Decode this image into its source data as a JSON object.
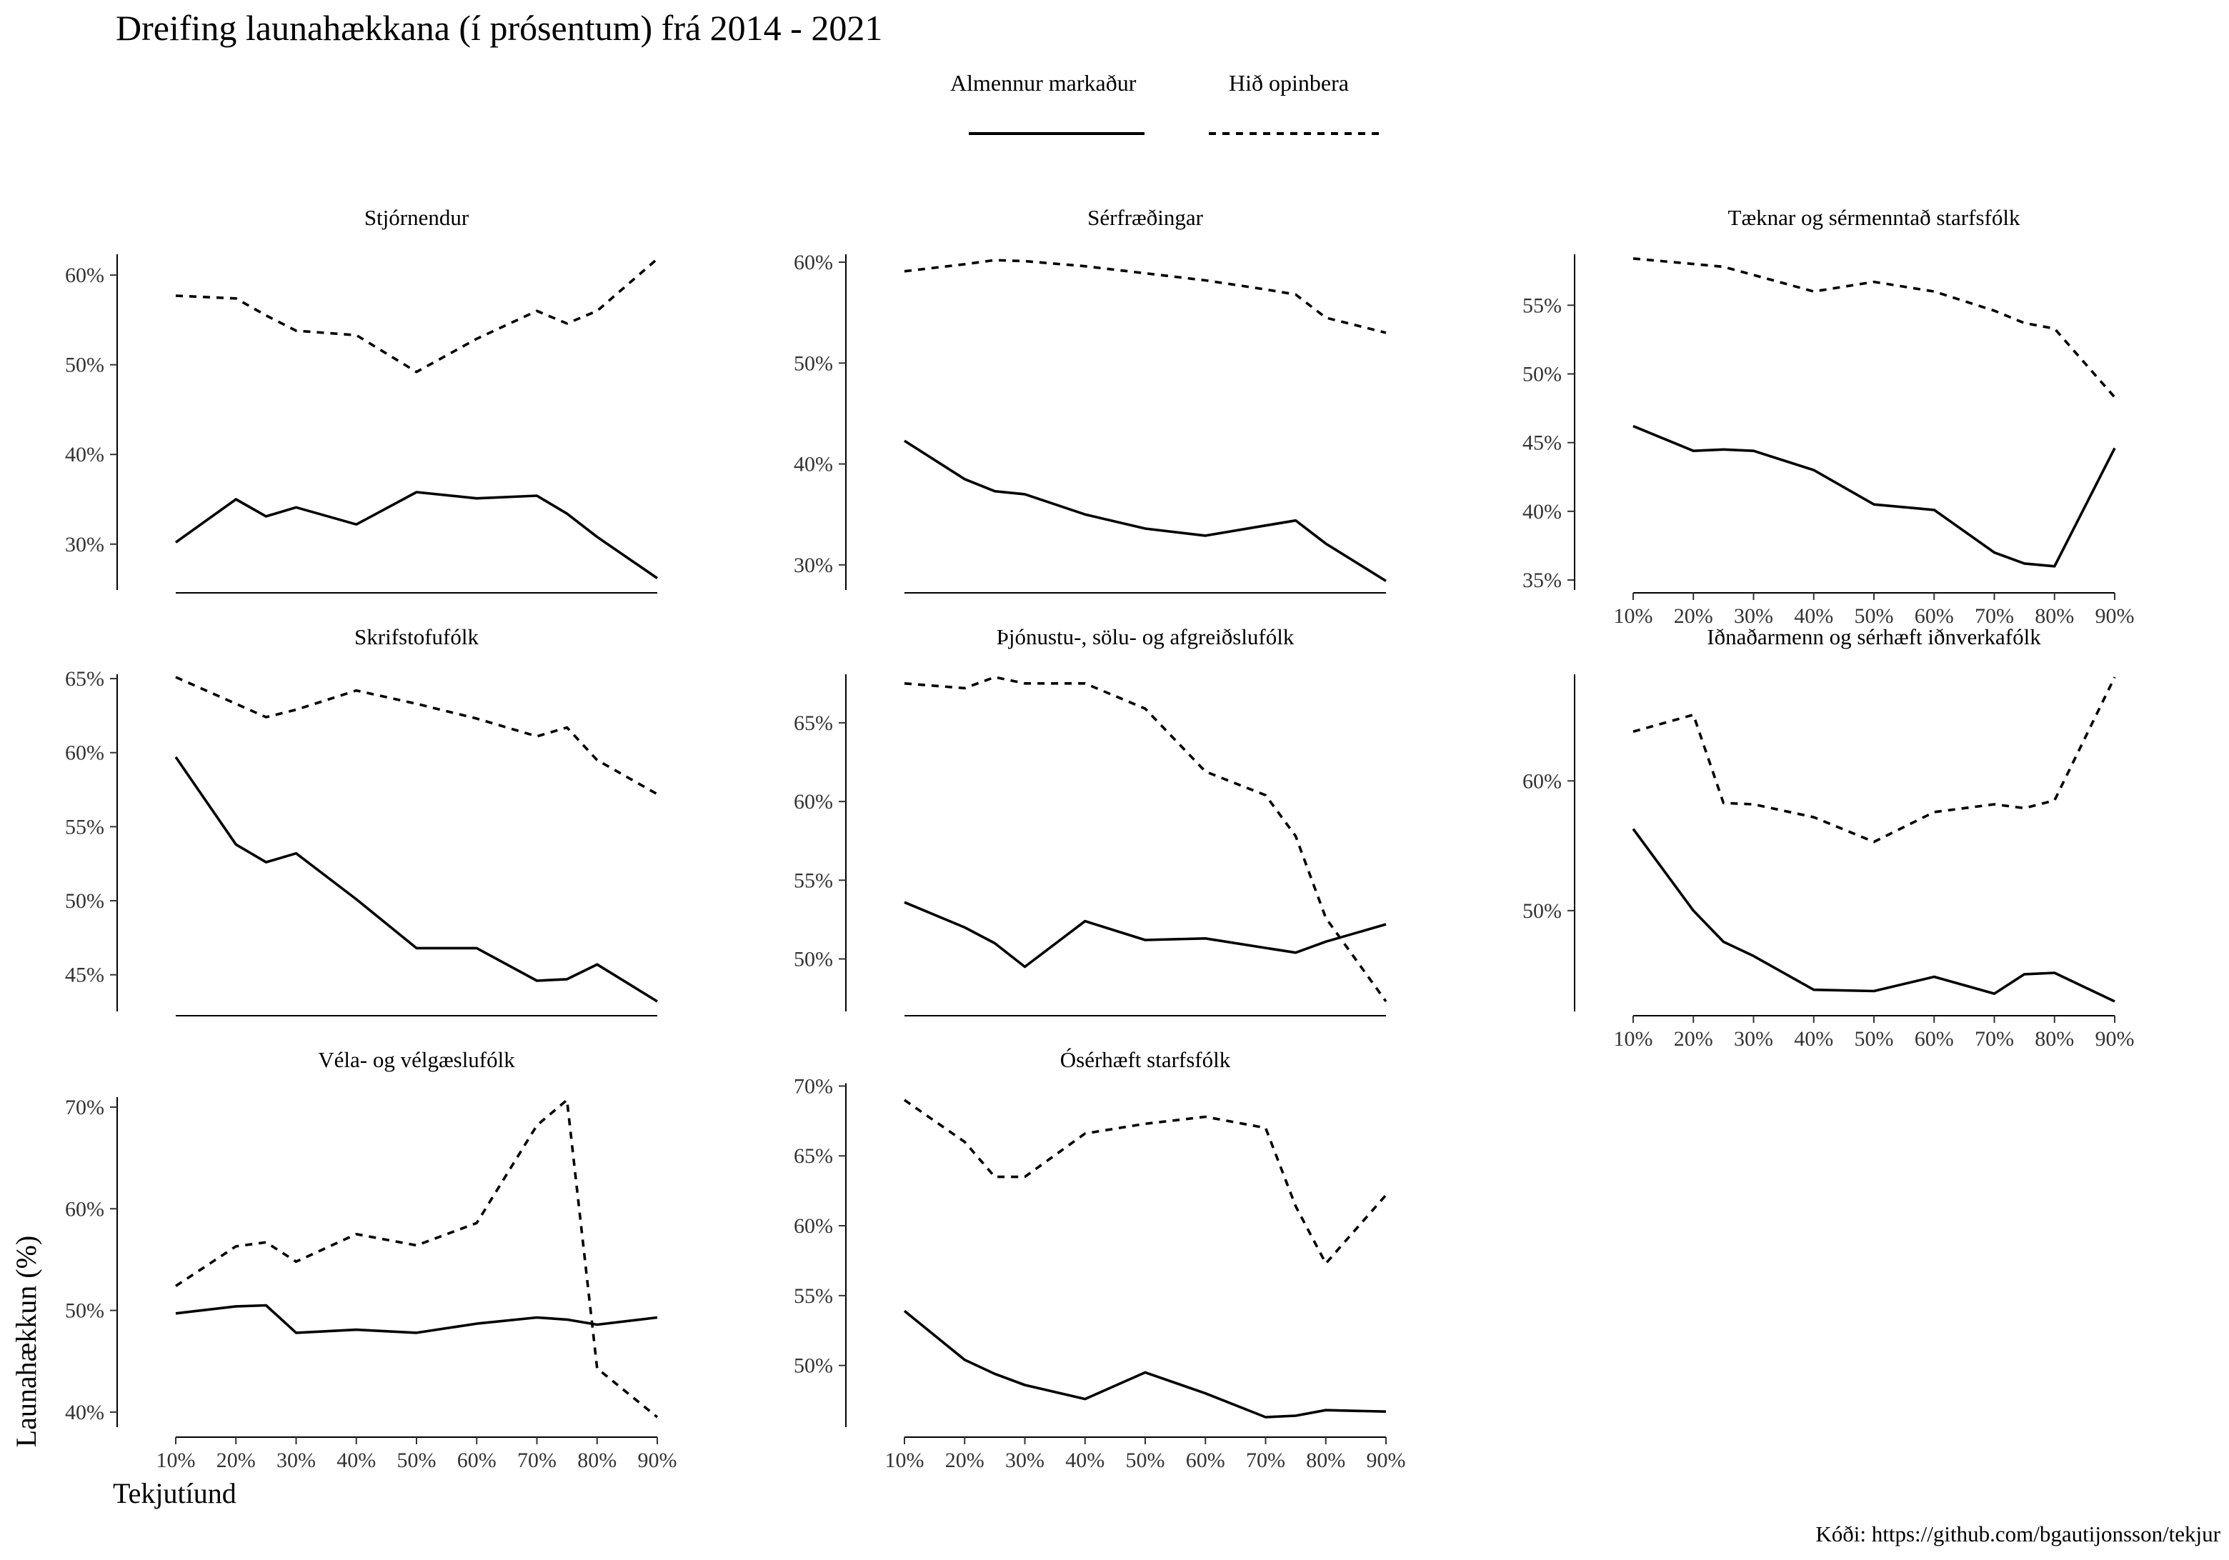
{
  "title": "Dreifing launahækkana (í prósentum) frá 2014 - 2021",
  "caption": "Kóði: https://github.com/bgautijonsson/tekjur",
  "legend": {
    "items": [
      {
        "label": "Almennur markaður",
        "style": "solid"
      },
      {
        "label": "Hið opinbera",
        "style": "dashed"
      }
    ]
  },
  "axes": {
    "xlabel": "Tekjutíund",
    "ylabel": "Launahækkun (%)",
    "x_ticks": [
      10,
      20,
      30,
      40,
      50,
      60,
      70,
      80,
      90
    ],
    "x_tick_labels": [
      "10%",
      "20%",
      "30%",
      "40%",
      "50%",
      "60%",
      "70%",
      "80%",
      "90%"
    ],
    "xlim": [
      10,
      90
    ]
  },
  "colors": {
    "line": "#000000",
    "text": "#000000",
    "tick_text": "#333333"
  },
  "chart_data": {
    "type": "line",
    "facets": [
      {
        "name": "Stjórnendur",
        "ylim": [
          26,
          62
        ],
        "yticks": [
          30,
          40,
          50,
          60
        ],
        "x_axis_labels": false,
        "x": [
          10,
          20,
          25,
          30,
          40,
          50,
          60,
          70,
          75,
          80,
          90
        ],
        "series": [
          {
            "name": "Almennur markaður",
            "values": [
              30.2,
              35.0,
              33.1,
              34.1,
              32.2,
              35.8,
              35.1,
              35.4,
              33.4,
              30.8,
              26.2
            ]
          },
          {
            "name": "Hið opinbera",
            "values": [
              57.7,
              57.4,
              55.5,
              53.8,
              53.3,
              49.2,
              52.9,
              56.0,
              54.6,
              56.0,
              61.8
            ]
          }
        ]
      },
      {
        "name": "Sérfræðingar",
        "ylim": [
          28.5,
          60.5
        ],
        "yticks": [
          30,
          40,
          50,
          60
        ],
        "x_axis_labels": false,
        "x": [
          10,
          20,
          25,
          30,
          40,
          50,
          60,
          70,
          75,
          80,
          90
        ],
        "series": [
          {
            "name": "Almennur markaður",
            "values": [
              42.3,
              38.5,
              37.3,
              37.0,
              35.0,
              33.6,
              32.9,
              33.9,
              34.4,
              32.1,
              28.4
            ]
          },
          {
            "name": "Hið opinbera",
            "values": [
              59.1,
              59.8,
              60.2,
              60.1,
              59.6,
              58.9,
              58.2,
              57.3,
              56.8,
              54.5,
              53.0
            ]
          }
        ]
      },
      {
        "name": "Tæknar og sérmenntað starfsfólk",
        "ylim": [
          35,
          58.5
        ],
        "yticks": [
          35,
          40,
          45,
          50,
          55
        ],
        "x_axis_labels": true,
        "x": [
          10,
          20,
          25,
          30,
          40,
          50,
          60,
          70,
          75,
          80,
          90
        ],
        "series": [
          {
            "name": "Almennur markaður",
            "values": [
              46.2,
              44.4,
              44.5,
              44.4,
              43.0,
              40.5,
              40.1,
              37.0,
              36.2,
              36.0,
              44.6
            ]
          },
          {
            "name": "Hið opinbera",
            "values": [
              58.4,
              58.0,
              57.8,
              57.2,
              56.0,
              56.7,
              56.0,
              54.6,
              53.7,
              53.3,
              48.3
            ]
          }
        ]
      },
      {
        "name": "Skrifstofufólk",
        "ylim": [
          43.2,
          65.1
        ],
        "yticks": [
          45,
          50,
          55,
          60,
          65
        ],
        "x_axis_labels": false,
        "x": [
          10,
          20,
          25,
          30,
          40,
          50,
          60,
          70,
          75,
          80,
          90
        ],
        "series": [
          {
            "name": "Almennur markaður",
            "values": [
              59.7,
              53.8,
              52.6,
              53.2,
              50.1,
              46.8,
              46.8,
              44.6,
              44.7,
              45.7,
              43.2
            ]
          },
          {
            "name": "Hið opinbera",
            "values": [
              65.1,
              63.3,
              62.4,
              62.9,
              64.2,
              63.3,
              62.3,
              61.1,
              61.7,
              59.5,
              57.2
            ]
          }
        ]
      },
      {
        "name": "Þjónustu-, sölu- og afgreiðslufólk",
        "ylim": [
          47.3,
          67.9
        ],
        "yticks": [
          50,
          55,
          60,
          65
        ],
        "x_axis_labels": false,
        "x": [
          10,
          20,
          25,
          30,
          40,
          50,
          60,
          70,
          75,
          80,
          90
        ],
        "series": [
          {
            "name": "Almennur markaður",
            "values": [
              53.6,
              52.0,
              51.0,
              49.5,
              52.4,
              51.2,
              51.3,
              50.7,
              50.4,
              51.1,
              52.2
            ]
          },
          {
            "name": "Hið opinbera",
            "values": [
              67.5,
              67.2,
              67.9,
              67.5,
              67.5,
              65.9,
              61.9,
              60.4,
              57.8,
              52.6,
              47.3
            ]
          }
        ]
      },
      {
        "name": "Iðnaðarmenn og sérhæft iðnverkafólk",
        "ylim": [
          43,
          68
        ],
        "yticks": [
          50,
          60
        ],
        "x_axis_labels": true,
        "x": [
          10,
          20,
          25,
          30,
          40,
          50,
          60,
          70,
          75,
          80,
          90
        ],
        "series": [
          {
            "name": "Almennur markaður",
            "values": [
              56.3,
              50.0,
              47.6,
              46.5,
              43.9,
              43.8,
              44.9,
              43.6,
              45.1,
              45.2,
              43.0
            ]
          },
          {
            "name": "Hið opinbera",
            "values": [
              63.8,
              65.1,
              58.3,
              58.2,
              57.2,
              55.3,
              57.6,
              58.2,
              57.9,
              58.5,
              68.0
            ]
          }
        ]
      },
      {
        "name": "Véla- og vélgæslufólk",
        "ylim": [
          39.5,
          70.7
        ],
        "yticks": [
          40,
          50,
          60,
          70
        ],
        "x_axis_labels": true,
        "x": [
          10,
          20,
          25,
          30,
          40,
          50,
          60,
          70,
          75,
          80,
          90
        ],
        "series": [
          {
            "name": "Almennur markaður",
            "values": [
              49.7,
              50.4,
              50.5,
              47.8,
              48.1,
              47.8,
              48.7,
              49.3,
              49.1,
              48.6,
              49.3
            ]
          },
          {
            "name": "Hið opinbera",
            "values": [
              52.4,
              56.3,
              56.7,
              54.8,
              57.5,
              56.4,
              58.6,
              68.2,
              70.7,
              44.3,
              39.5
            ]
          }
        ]
      },
      {
        "name": "Ósérhæft starfsfólk",
        "ylim": [
          46.3,
          69.0
        ],
        "yticks": [
          50,
          55,
          60,
          65,
          70
        ],
        "x_axis_labels": true,
        "x": [
          10,
          20,
          25,
          30,
          40,
          50,
          60,
          70,
          75,
          80,
          90
        ],
        "series": [
          {
            "name": "Almennur markaður",
            "values": [
              53.9,
              50.4,
              49.4,
              48.6,
              47.6,
              49.5,
              48.0,
              46.3,
              46.4,
              46.8,
              46.7
            ]
          },
          {
            "name": "Hið opinbera",
            "values": [
              69.0,
              66.0,
              63.5,
              63.5,
              66.6,
              67.3,
              67.8,
              67.0,
              61.4,
              57.3,
              62.2
            ]
          }
        ]
      }
    ]
  }
}
